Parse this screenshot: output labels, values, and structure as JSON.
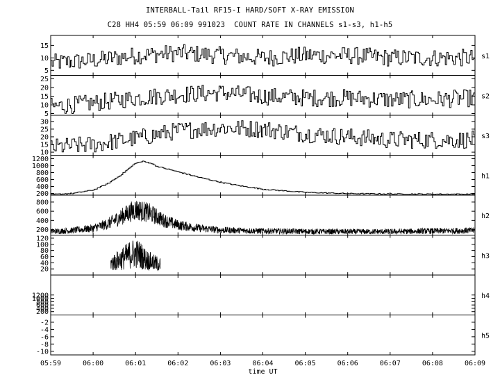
{
  "header": {
    "title": "INTERBALL-Tail RF15-I HARD/SOFT X-RAY EMISSION",
    "subtitle": "C28 HH4 05:59 06:09 991023  COUNT RATE IN CHANNELS s1-s3, h1-h5"
  },
  "colors": {
    "background": "#ffffff",
    "ink": "#000000"
  },
  "chart_data": {
    "type": "line",
    "time_axis": {
      "label": "time UT",
      "range": [
        "05:59",
        "06:09"
      ],
      "ticks": [
        "05:59",
        "06:00",
        "06:01",
        "06:02",
        "06:03",
        "06:04",
        "06:05",
        "06:06",
        "06:07",
        "06:08",
        "06:09"
      ]
    },
    "panels": [
      {
        "name": "s1",
        "ylim": [
          3,
          19
        ],
        "yticks": [
          "5",
          "10",
          "15"
        ],
        "style": "step",
        "x": [
          "05:59",
          "06:00",
          "06:01",
          "06:02",
          "06:03",
          "06:04",
          "06:05",
          "06:06",
          "06:07",
          "06:08",
          "06:09"
        ],
        "values": [
          8,
          9,
          11,
          12,
          11,
          10,
          11,
          11,
          10,
          10,
          10
        ]
      },
      {
        "name": "s2",
        "ylim": [
          4,
          27
        ],
        "yticks": [
          "5",
          "10",
          "15",
          "20",
          "25"
        ],
        "style": "step",
        "x": [
          "05:59",
          "06:00",
          "06:01",
          "06:02",
          "06:03",
          "06:04",
          "06:05",
          "06:06",
          "06:07",
          "06:08",
          "06:09"
        ],
        "values": [
          9,
          11,
          14,
          16,
          17,
          15,
          14,
          14,
          13,
          13,
          14
        ]
      },
      {
        "name": "s3",
        "ylim": [
          8,
          34
        ],
        "yticks": [
          "10",
          "15",
          "20",
          "25",
          "30"
        ],
        "style": "step",
        "x": [
          "05:59",
          "06:00",
          "06:01",
          "06:02",
          "06:03",
          "06:04",
          "06:05",
          "06:06",
          "06:07",
          "06:08",
          "06:09"
        ],
        "values": [
          13,
          15,
          19,
          24,
          26,
          25,
          22,
          20,
          18,
          18,
          18
        ]
      },
      {
        "name": "h1",
        "ylim": [
          150,
          1300
        ],
        "yticks": [
          "200",
          "400",
          "600",
          "800",
          "1000",
          "1200"
        ],
        "style": "step",
        "x": [
          "05:59",
          "05:59:30",
          "06:00",
          "06:00:20",
          "06:00:40",
          "06:00:50",
          "06:01",
          "06:01:10",
          "06:01:20",
          "06:01:30",
          "06:02",
          "06:02:30",
          "06:03",
          "06:03:30",
          "06:04",
          "06:05",
          "06:06",
          "06:07",
          "06:08",
          "06:09"
        ],
        "values": [
          170,
          200,
          300,
          480,
          750,
          920,
          1080,
          1120,
          1080,
          980,
          820,
          660,
          520,
          410,
          320,
          230,
          195,
          185,
          180,
          178
        ]
      },
      {
        "name": "h2",
        "ylim": [
          80,
          950
        ],
        "yticks": [
          "200",
          "400",
          "600",
          "800"
        ],
        "style": "noisy",
        "x": [
          "05:59",
          "05:59:30",
          "06:00",
          "06:00:20",
          "06:00:40",
          "06:01",
          "06:01:20",
          "06:01:40",
          "06:02",
          "06:02:30",
          "06:03",
          "06:04",
          "06:05",
          "06:06",
          "06:07",
          "06:08",
          "06:09"
        ],
        "values": [
          160,
          180,
          230,
          320,
          480,
          640,
          560,
          400,
          300,
          230,
          190,
          170,
          160,
          155,
          155,
          170,
          180
        ]
      },
      {
        "name": "h3",
        "ylim": [
          0,
          130
        ],
        "yticks": [
          "20",
          "40",
          "60",
          "80",
          "100",
          "120"
        ],
        "style": "noisy",
        "x": [
          "06:00:25",
          "06:00:40",
          "06:00:55",
          "06:01:05",
          "06:01:15",
          "06:01:25",
          "06:01:35"
        ],
        "values": [
          38,
          52,
          70,
          68,
          50,
          40,
          34
        ]
      },
      {
        "name": "h4",
        "ylim": [
          0,
          2400
        ],
        "yticks": [
          "200",
          "400",
          "600",
          "800",
          "1000",
          "1200"
        ],
        "style": "empty",
        "x": [],
        "values": []
      },
      {
        "name": "h5",
        "ylim": [
          -11,
          0
        ],
        "yticks": [
          "-2",
          "-4",
          "-6",
          "-8",
          "-10"
        ],
        "style": "empty",
        "x": [],
        "values": []
      }
    ]
  }
}
